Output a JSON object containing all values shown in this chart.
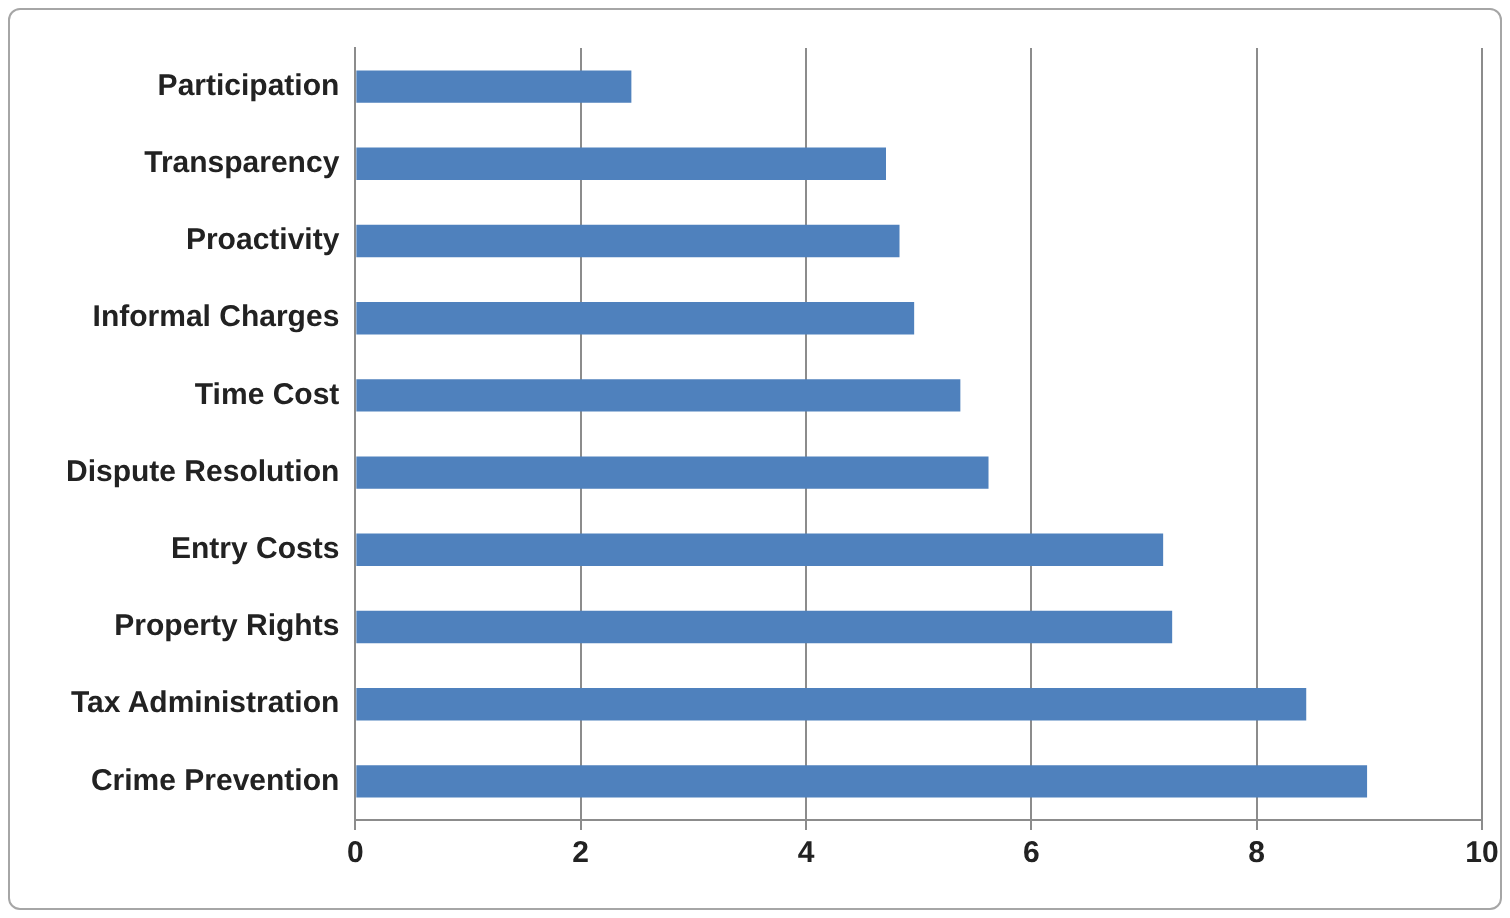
{
  "chart_data": {
    "type": "bar",
    "orientation": "horizontal",
    "categories": [
      "Participation",
      "Transparency",
      "Proactivity",
      "Informal Charges",
      "Time Cost",
      "Dispute Resolution",
      "Entry Costs",
      "Property Rights",
      "Tax Administration",
      "Crime Prevention"
    ],
    "values": [
      2.45,
      4.71,
      4.83,
      4.96,
      5.37,
      5.62,
      7.17,
      7.25,
      8.44,
      8.98
    ],
    "color": "#4f81bd",
    "xlim": [
      0,
      10
    ],
    "xticks": [
      0,
      2,
      4,
      6,
      8,
      10
    ],
    "grid": "x"
  }
}
